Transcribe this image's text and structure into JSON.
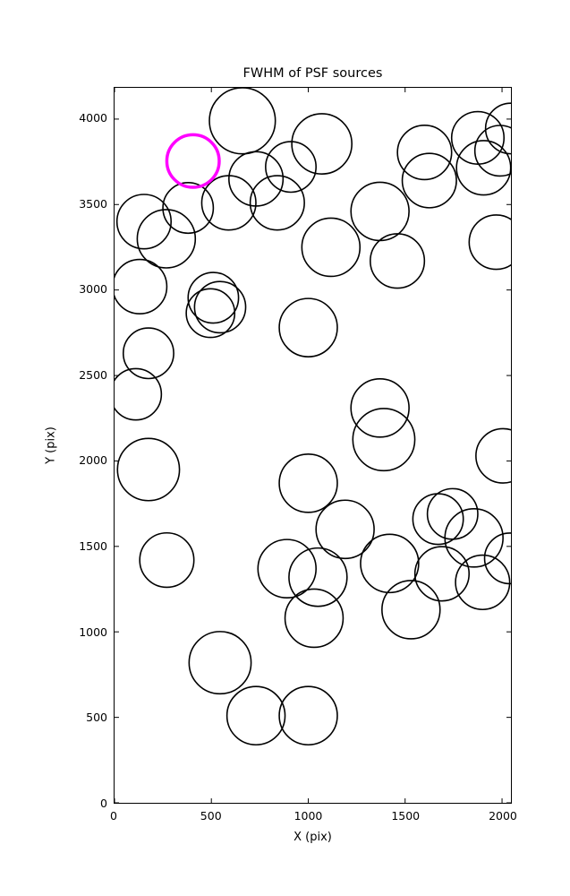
{
  "figure": {
    "title": "FWHM of PSF sources",
    "xlabel": "X (pix)",
    "ylabel": "Y (pix)"
  },
  "chart_data": {
    "type": "scatter",
    "title": "FWHM of PSF sources",
    "xlabel": "X (pix)",
    "ylabel": "Y (pix)",
    "xlim": [
      0,
      2046
    ],
    "ylim": [
      0,
      4183
    ],
    "xticks": [
      0,
      500,
      1000,
      1500,
      2000
    ],
    "yticks": [
      0,
      500,
      1000,
      1500,
      2000,
      2500,
      3000,
      3500,
      4000
    ],
    "grid": false,
    "legend": "none",
    "marker_style": "open-circle",
    "default_color": "#000000",
    "default_line_width": 1.6,
    "highlight_color": "#ff00ff",
    "highlight_line_width": 3.5,
    "radius_units": "x-data-units",
    "circles": [
      {
        "x": 660,
        "y": 3990,
        "r": 170
      },
      {
        "x": 1070,
        "y": 3855,
        "r": 155
      },
      {
        "x": 1600,
        "y": 3805,
        "r": 140
      },
      {
        "x": 1875,
        "y": 3890,
        "r": 135
      },
      {
        "x": 2045,
        "y": 3945,
        "r": 130
      },
      {
        "x": 1990,
        "y": 3815,
        "r": 130
      },
      {
        "x": 1905,
        "y": 3715,
        "r": 140
      },
      {
        "x": 910,
        "y": 3720,
        "r": 130
      },
      {
        "x": 730,
        "y": 3650,
        "r": 140
      },
      {
        "x": 590,
        "y": 3510,
        "r": 140
      },
      {
        "x": 840,
        "y": 3510,
        "r": 140
      },
      {
        "x": 380,
        "y": 3480,
        "r": 130
      },
      {
        "x": 152,
        "y": 3400,
        "r": 140
      },
      {
        "x": 267,
        "y": 3300,
        "r": 150
      },
      {
        "x": 1625,
        "y": 3640,
        "r": 140
      },
      {
        "x": 1370,
        "y": 3460,
        "r": 150
      },
      {
        "x": 1117,
        "y": 3250,
        "r": 150
      },
      {
        "x": 1460,
        "y": 3170,
        "r": 140
      },
      {
        "x": 1970,
        "y": 3280,
        "r": 140
      },
      {
        "x": 130,
        "y": 3020,
        "r": 140
      },
      {
        "x": 510,
        "y": 2955,
        "r": 130
      },
      {
        "x": 545,
        "y": 2900,
        "r": 132
      },
      {
        "x": 495,
        "y": 2865,
        "r": 125
      },
      {
        "x": 1000,
        "y": 2780,
        "r": 150
      },
      {
        "x": 175,
        "y": 2630,
        "r": 130
      },
      {
        "x": 110,
        "y": 2390,
        "r": 132
      },
      {
        "x": 1370,
        "y": 2310,
        "r": 150
      },
      {
        "x": 1390,
        "y": 2125,
        "r": 160
      },
      {
        "x": 175,
        "y": 1950,
        "r": 160
      },
      {
        "x": 2005,
        "y": 2030,
        "r": 140
      },
      {
        "x": 1000,
        "y": 1870,
        "r": 150
      },
      {
        "x": 1190,
        "y": 1600,
        "r": 150
      },
      {
        "x": 1670,
        "y": 1660,
        "r": 130
      },
      {
        "x": 1745,
        "y": 1690,
        "r": 130
      },
      {
        "x": 1855,
        "y": 1550,
        "r": 150
      },
      {
        "x": 270,
        "y": 1420,
        "r": 140
      },
      {
        "x": 890,
        "y": 1370,
        "r": 150
      },
      {
        "x": 1050,
        "y": 1320,
        "r": 150
      },
      {
        "x": 1420,
        "y": 1400,
        "r": 150
      },
      {
        "x": 1690,
        "y": 1340,
        "r": 140
      },
      {
        "x": 1900,
        "y": 1290,
        "r": 140
      },
      {
        "x": 2040,
        "y": 1430,
        "r": 130
      },
      {
        "x": 1530,
        "y": 1130,
        "r": 150
      },
      {
        "x": 1030,
        "y": 1080,
        "r": 150
      },
      {
        "x": 545,
        "y": 820,
        "r": 160
      },
      {
        "x": 730,
        "y": 510,
        "r": 150
      },
      {
        "x": 1000,
        "y": 510,
        "r": 150
      },
      {
        "x": 405,
        "y": 3755,
        "r": 135,
        "color": "#ff00ff"
      }
    ]
  }
}
